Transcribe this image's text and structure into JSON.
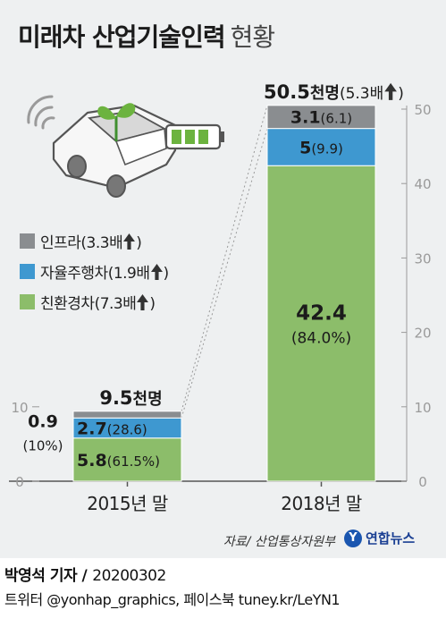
{
  "header": {
    "title": "미래차 산업기술인력",
    "subtitle": "현황"
  },
  "chart_data": {
    "type": "bar",
    "stacked": true,
    "categories": [
      "2015년 말",
      "2018년 말"
    ],
    "ylim": [
      0,
      50
    ],
    "yticks": [
      0,
      10,
      20,
      30,
      40,
      50
    ],
    "series": [
      {
        "name": "친환경차",
        "values": [
          5.8,
          42.4
        ],
        "shares": [
          "(61.5%)",
          "(84.0%)"
        ],
        "growth": "(7.3배",
        "color": "#8cbd6a"
      },
      {
        "name": "자율주행차",
        "values": [
          2.7,
          5.0
        ],
        "shares": [
          "(28.6)",
          "(9.9)"
        ],
        "growth": "(1.9배",
        "color": "#3e98d0"
      },
      {
        "name": "인프라",
        "values": [
          0.9,
          3.1
        ],
        "shares": [
          "(10%)",
          "(6.1)"
        ],
        "growth": "(3.3배",
        "color": "#8a8d90"
      }
    ],
    "totals": [
      {
        "value": "9.5",
        "unit": "천명",
        "extra": ""
      },
      {
        "value": "50.5",
        "unit": "천명",
        "extra": "(5.3배"
      }
    ],
    "legend_position": "left"
  },
  "source": "자료/ 산업통상자원부",
  "logo": {
    "mark": "Y",
    "text": "연합뉴스"
  },
  "credit": {
    "author": "박영석 기자 /",
    "date": "20200302"
  },
  "social": "트위터 @yonhap_graphics, 페이스북 tuney.kr/LeYN1",
  "colors": {
    "arrow": "#333333",
    "tick": "#9a9a9a",
    "background": "#eef0f1"
  }
}
